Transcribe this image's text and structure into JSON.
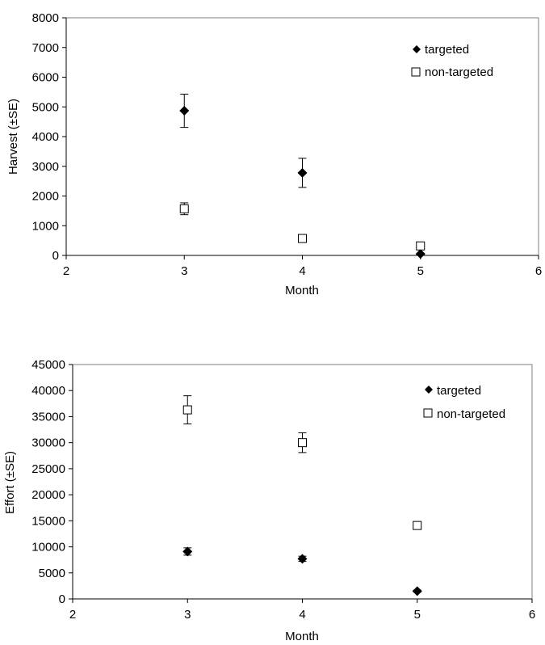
{
  "chart_data": [
    {
      "type": "scatter",
      "title": "",
      "xlabel": "Month",
      "ylabel": "Harvest (±SE)",
      "xlim": [
        2,
        6
      ],
      "ylim": [
        0,
        8000
      ],
      "xticks": [
        "2",
        "3",
        "4",
        "5",
        "6"
      ],
      "yticks": [
        "0",
        "1000",
        "2000",
        "3000",
        "4000",
        "5000",
        "6000",
        "7000",
        "8000"
      ],
      "grid": false,
      "legend_position": "top-right",
      "series": [
        {
          "name": "targeted",
          "marker": "filled-diamond",
          "color": "#000000",
          "x": [
            3,
            4,
            5
          ],
          "y": [
            4870,
            2780,
            50
          ],
          "se": [
            560,
            490,
            20
          ]
        },
        {
          "name": "non-targeted",
          "marker": "open-square",
          "color": "#000000",
          "x": [
            3,
            4,
            5
          ],
          "y": [
            1570,
            570,
            320
          ],
          "se": [
            200,
            60,
            60
          ]
        }
      ]
    },
    {
      "type": "scatter",
      "title": "",
      "xlabel": "Month",
      "ylabel": "Effort (±SE)",
      "xlim": [
        2,
        6
      ],
      "ylim": [
        0,
        45000
      ],
      "xticks": [
        "2",
        "3",
        "4",
        "5",
        "6"
      ],
      "yticks": [
        "0",
        "5000",
        "10000",
        "15000",
        "20000",
        "25000",
        "30000",
        "35000",
        "40000",
        "45000"
      ],
      "grid": false,
      "legend_position": "top-right",
      "series": [
        {
          "name": "targeted",
          "marker": "filled-diamond",
          "color": "#000000",
          "x": [
            3,
            4,
            5
          ],
          "y": [
            9100,
            7700,
            1500
          ],
          "se": [
            700,
            500,
            200
          ]
        },
        {
          "name": "non-targeted",
          "marker": "open-square",
          "color": "#000000",
          "x": [
            3,
            4,
            5
          ],
          "y": [
            36300,
            30000,
            14100
          ],
          "se": [
            2700,
            1900,
            700
          ]
        }
      ]
    }
  ]
}
